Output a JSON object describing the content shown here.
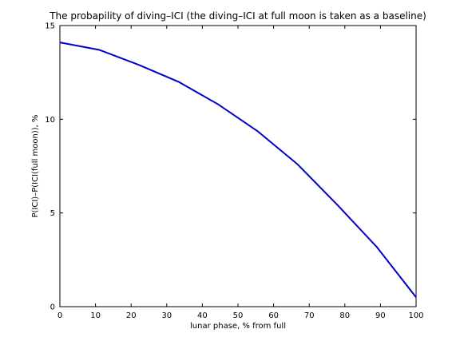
{
  "chart_data": {
    "type": "line",
    "title": "The probapility of diving–ICI (the diving–ICI at full moon is taken as a baseline)",
    "xlabel": "lunar phase, % from full",
    "ylabel": "P(ICI)–P(ICI(full moon)), %",
    "xlim": [
      0,
      100
    ],
    "ylim": [
      0,
      15
    ],
    "xticks": [
      0,
      10,
      20,
      30,
      40,
      50,
      60,
      70,
      80,
      90,
      100
    ],
    "yticks": [
      0,
      5,
      10,
      15
    ],
    "grid": false,
    "series": [
      {
        "color": "#0000cc",
        "x": [
          0,
          11.1,
          22.2,
          33.3,
          44.4,
          55.6,
          66.7,
          77.8,
          88.9,
          100
        ],
        "y": [
          14.1,
          13.7,
          12.9,
          12.0,
          10.8,
          9.35,
          7.6,
          5.45,
          3.2,
          0.5
        ]
      }
    ]
  }
}
